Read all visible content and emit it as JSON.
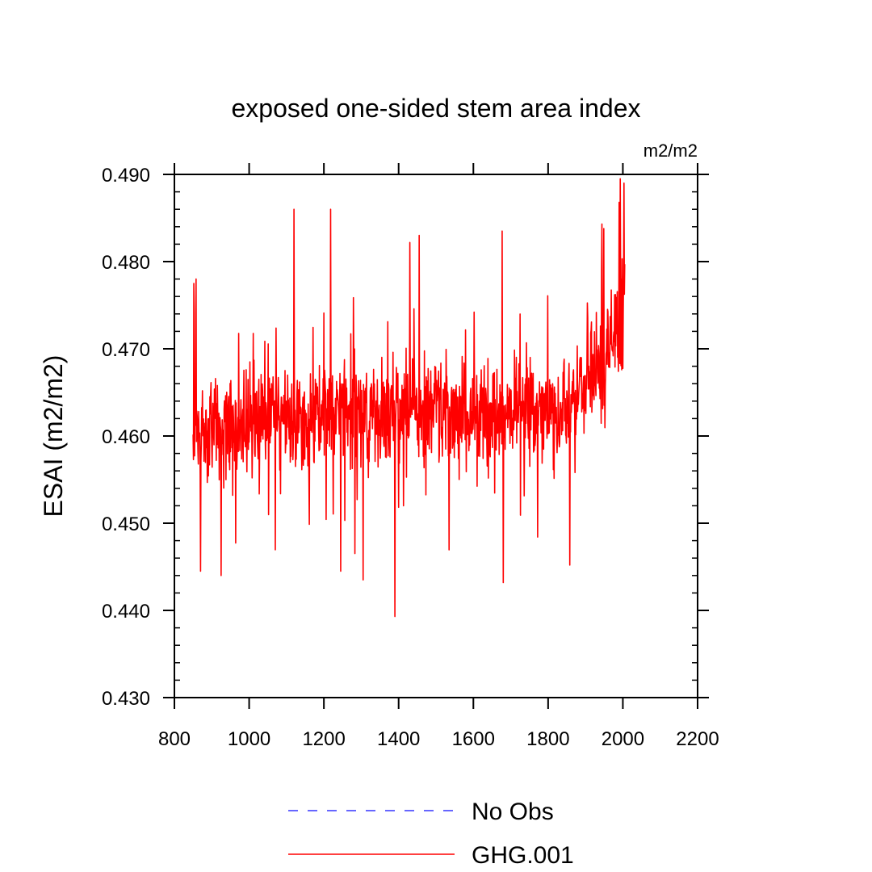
{
  "chart_data": {
    "type": "line",
    "title": "exposed one-sided stem area index",
    "units_label": "m2/m2",
    "xlabel": "",
    "ylabel": "ESAI  (m2/m2)",
    "xlim": [
      800,
      2200
    ],
    "ylim": [
      0.43,
      0.49
    ],
    "x_ticks": [
      800,
      1000,
      1200,
      1400,
      1600,
      1800,
      2000,
      2200
    ],
    "y_ticks": [
      0.43,
      0.44,
      0.45,
      0.46,
      0.47,
      0.48,
      0.49
    ],
    "x_tick_labels": [
      "800",
      "1000",
      "1200",
      "1400",
      "1600",
      "1800",
      "2000",
      "2200"
    ],
    "y_tick_labels": [
      "0.430",
      "0.440",
      "0.450",
      "0.460",
      "0.470",
      "0.480",
      "0.490"
    ],
    "legend": [
      {
        "name": "No Obs",
        "color": "#3333ff",
        "style": "dashed"
      },
      {
        "name": "GHG.001",
        "color": "#ff0000",
        "style": "solid"
      }
    ],
    "series": [
      {
        "name": "GHG.001",
        "color": "#ff0000",
        "x_start": 850,
        "x_end": 2005,
        "baseline_segments": [
          {
            "x": 850,
            "mean": 0.4605
          },
          {
            "x": 1000,
            "mean": 0.4615
          },
          {
            "x": 1200,
            "mean": 0.4625
          },
          {
            "x": 1400,
            "mean": 0.463
          },
          {
            "x": 1600,
            "mean": 0.4625
          },
          {
            "x": 1850,
            "mean": 0.4632
          },
          {
            "x": 1920,
            "mean": 0.466
          },
          {
            "x": 1960,
            "mean": 0.47
          },
          {
            "x": 2005,
            "mean": 0.474
          }
        ],
        "amplitude": 0.0065,
        "notable_points": [
          {
            "x": 852,
            "y": 0.4775
          },
          {
            "x": 858,
            "y": 0.478
          },
          {
            "x": 870,
            "y": 0.4445
          },
          {
            "x": 925,
            "y": 0.444
          },
          {
            "x": 1120,
            "y": 0.486
          },
          {
            "x": 1218,
            "y": 0.486
          },
          {
            "x": 1245,
            "y": 0.4445
          },
          {
            "x": 1305,
            "y": 0.4435
          },
          {
            "x": 1390,
            "y": 0.4393
          },
          {
            "x": 1430,
            "y": 0.4822
          },
          {
            "x": 1455,
            "y": 0.483
          },
          {
            "x": 1677,
            "y": 0.4835
          },
          {
            "x": 1680,
            "y": 0.4432
          },
          {
            "x": 1858,
            "y": 0.4452
          },
          {
            "x": 1990,
            "y": 0.4868
          },
          {
            "x": 2003,
            "y": 0.489
          },
          {
            "x": 2005,
            "y": 0.4797
          }
        ]
      }
    ]
  }
}
